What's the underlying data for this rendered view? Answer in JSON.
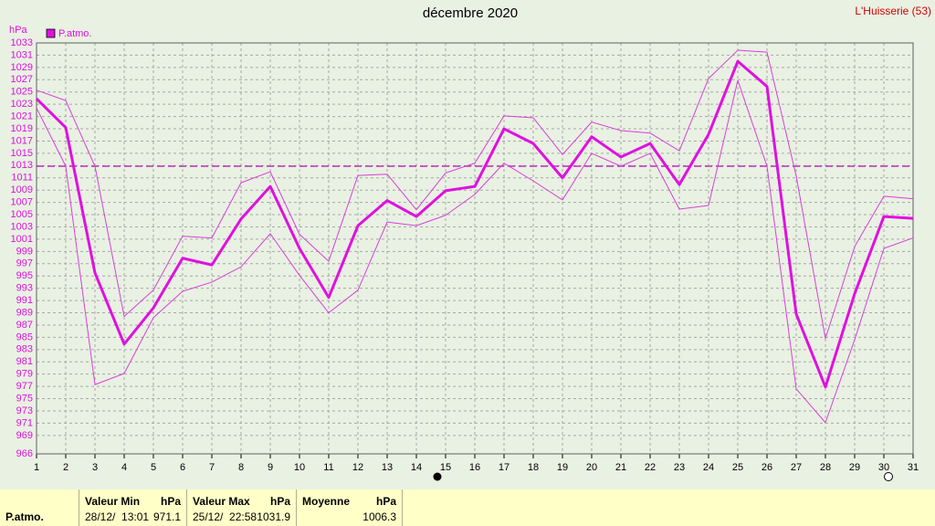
{
  "chart_data": {
    "type": "line",
    "title": "décembre 2020",
    "station": "L'Huisserie (53)",
    "y_unit": "hPa",
    "x": [
      1,
      2,
      3,
      4,
      5,
      6,
      7,
      8,
      9,
      10,
      11,
      12,
      13,
      14,
      15,
      16,
      17,
      18,
      19,
      20,
      21,
      22,
      23,
      24,
      25,
      26,
      27,
      28,
      29,
      30,
      31
    ],
    "xlim": [
      1,
      31
    ],
    "xticks": [
      1,
      2,
      3,
      4,
      5,
      6,
      7,
      8,
      9,
      10,
      11,
      12,
      13,
      14,
      15,
      16,
      17,
      18,
      19,
      20,
      21,
      22,
      23,
      24,
      25,
      26,
      27,
      28,
      29,
      30,
      31
    ],
    "ylim": [
      966,
      1033
    ],
    "yticks": [
      966,
      969,
      971,
      973,
      975,
      977,
      979,
      981,
      983,
      985,
      987,
      989,
      991,
      993,
      995,
      997,
      999,
      1001,
      1003,
      1005,
      1007,
      1009,
      1011,
      1013,
      1015,
      1017,
      1019,
      1021,
      1023,
      1025,
      1027,
      1029,
      1031,
      1033
    ],
    "grid": true,
    "reference_line": 1012.9,
    "series": [
      {
        "name": "P.atmo.",
        "color": "#e010e0",
        "width": 3,
        "values": [
          1023.9,
          1019.2,
          995.5,
          983.9,
          989.8,
          997.9,
          996.8,
          1004.3,
          1009.6,
          999.5,
          991.5,
          1003.2,
          1007.3,
          1004.7,
          1008.9,
          1009.6,
          1019.0,
          1016.6,
          1011.0,
          1017.7,
          1014.4,
          1016.6,
          1009.9,
          1018.1,
          1030.0,
          1025.9,
          988.8,
          976.9,
          992.1,
          1004.7,
          1004.4
        ]
      },
      {
        "color": "#d840d8",
        "width": 1,
        "values": [
          1025.3,
          1023.6,
          1012.9,
          988.4,
          992.7,
          1001.5,
          1001.2,
          1010.2,
          1012.0,
          1001.8,
          997.4,
          1011.4,
          1011.6,
          1005.8,
          1011.8,
          1013.4,
          1021.1,
          1020.8,
          1014.8,
          1020.1,
          1018.7,
          1018.3,
          1015.4,
          1027.2,
          1031.8,
          1031.5,
          1011.3,
          984.8,
          999.8,
          1008.0,
          1007.6
        ]
      },
      {
        "color": "#d840d8",
        "width": 1,
        "values": [
          1022.4,
          1012.9,
          977.3,
          979.1,
          988.2,
          992.5,
          994.0,
          996.5,
          1001.9,
          995.1,
          989.0,
          992.7,
          1003.8,
          1003.2,
          1004.9,
          1008.3,
          1013.4,
          1010.5,
          1007.4,
          1015.0,
          1012.9,
          1015.0,
          1005.9,
          1006.5,
          1026.9,
          1012.9,
          976.6,
          971.1,
          984.6,
          999.5,
          1001.2
        ]
      }
    ]
  },
  "stats": {
    "min": {
      "header": "Valeur Min",
      "unit": "hPa",
      "date": "28/12/  13:01",
      "value": 971.1
    },
    "max": {
      "header": "Valeur Max",
      "unit": "hPa",
      "date": "25/12/  22:58",
      "value": 1031.9
    },
    "mean": {
      "header": "Moyenne",
      "unit": "hPa",
      "value": 1006.3
    }
  }
}
